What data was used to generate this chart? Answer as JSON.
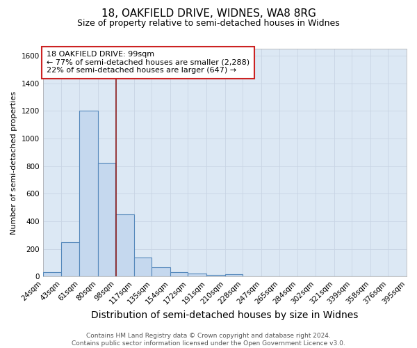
{
  "title": "18, OAKFIELD DRIVE, WIDNES, WA8 8RG",
  "subtitle": "Size of property relative to semi-detached houses in Widnes",
  "xlabel": "Distribution of semi-detached houses by size in Widnes",
  "ylabel": "Number of semi-detached properties",
  "footer1": "Contains HM Land Registry data © Crown copyright and database right 2024.",
  "footer2": "Contains public sector information licensed under the Open Government Licence v3.0.",
  "bin_labels": [
    "24sqm",
    "43sqm",
    "61sqm",
    "80sqm",
    "98sqm",
    "117sqm",
    "135sqm",
    "154sqm",
    "172sqm",
    "191sqm",
    "210sqm",
    "228sqm",
    "247sqm",
    "265sqm",
    "284sqm",
    "302sqm",
    "321sqm",
    "339sqm",
    "358sqm",
    "376sqm",
    "395sqm"
  ],
  "bin_edges": [
    24,
    43,
    61,
    80,
    98,
    117,
    135,
    154,
    172,
    191,
    210,
    228,
    247,
    265,
    284,
    302,
    321,
    339,
    358,
    376,
    395
  ],
  "bar_heights": [
    30,
    250,
    1200,
    825,
    450,
    140,
    65,
    30,
    20,
    10,
    15,
    0,
    0,
    0,
    0,
    0,
    0,
    0,
    0,
    0
  ],
  "bar_color": "#c5d8ee",
  "bar_edge_color": "#5588bb",
  "property_line_x": 99,
  "property_line_color": "#8b1a1a",
  "ylim": [
    0,
    1650
  ],
  "yticks": [
    0,
    200,
    400,
    600,
    800,
    1000,
    1200,
    1400,
    1600
  ],
  "annotation_line1": "18 OAKFIELD DRIVE: 99sqm",
  "annotation_line2": "← 77% of semi-detached houses are smaller (2,288)",
  "annotation_line3": "22% of semi-detached houses are larger (647) →",
  "annotation_box_facecolor": "#ffffff",
  "annotation_box_edgecolor": "#cc2222",
  "grid_color": "#c8d4e4",
  "bg_color": "#dce8f4",
  "title_fontsize": 11,
  "subtitle_fontsize": 9,
  "xlabel_fontsize": 10,
  "ylabel_fontsize": 8,
  "tick_fontsize": 7.5,
  "annotation_fontsize": 8,
  "footer_fontsize": 6.5
}
